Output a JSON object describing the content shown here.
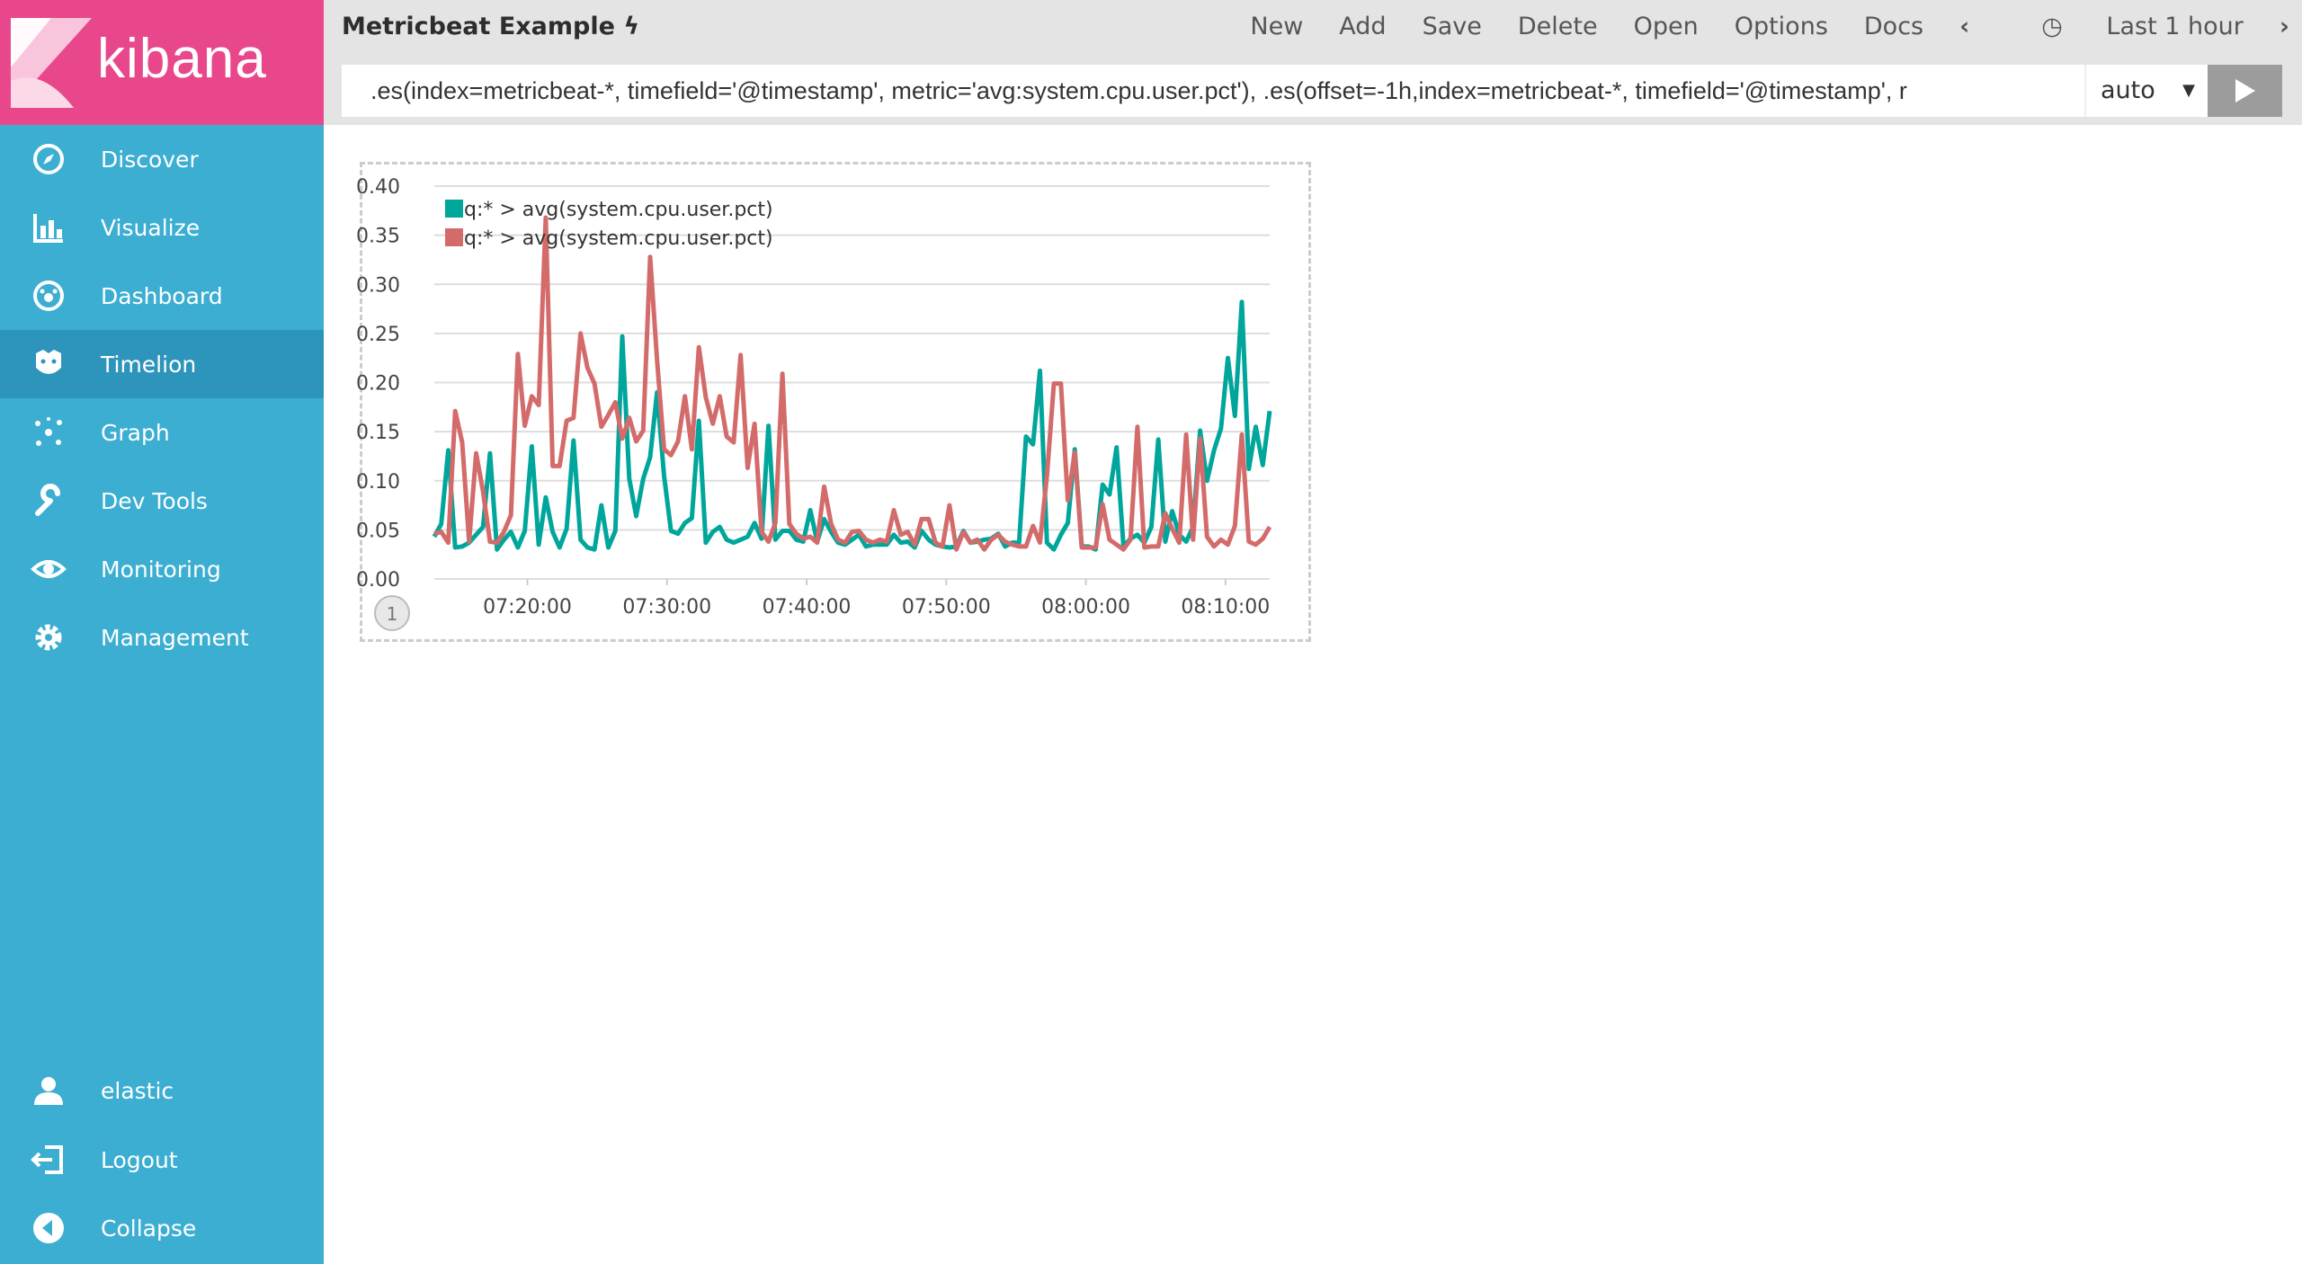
{
  "app": {
    "logo_text": "kibana",
    "brand_color": "#e8488b",
    "sidebar_color": "#3caed2"
  },
  "sidebar": {
    "items": [
      {
        "label": "Discover",
        "icon": "compass-icon"
      },
      {
        "label": "Visualize",
        "icon": "bar-chart-icon"
      },
      {
        "label": "Dashboard",
        "icon": "dashboard-icon"
      },
      {
        "label": "Timelion",
        "icon": "timelion-icon",
        "active": true
      },
      {
        "label": "Graph",
        "icon": "graph-icon"
      },
      {
        "label": "Dev Tools",
        "icon": "wrench-icon"
      },
      {
        "label": "Monitoring",
        "icon": "eye-icon"
      },
      {
        "label": "Management",
        "icon": "gear-icon"
      }
    ],
    "bottom": [
      {
        "label": "elastic",
        "icon": "user-icon"
      },
      {
        "label": "Logout",
        "icon": "logout-icon"
      },
      {
        "label": "Collapse",
        "icon": "collapse-icon"
      }
    ]
  },
  "header": {
    "title": "Metricbeat Example",
    "menu": [
      "New",
      "Add",
      "Save",
      "Delete",
      "Open",
      "Options",
      "Docs"
    ],
    "time_range": "Last 1 hour",
    "query": ".es(index=metricbeat-*, timefield='@timestamp', metric='avg:system.cpu.user.pct'), .es(offset=-1h,index=metricbeat-*, timefield='@timestamp', r",
    "interval": "auto"
  },
  "chart_data": {
    "type": "line",
    "x_range": [
      "07:13:20",
      "08:13:10"
    ],
    "x_ticks": [
      "07:20:00",
      "07:30:00",
      "07:40:00",
      "07:50:00",
      "08:00:00",
      "08:10:00"
    ],
    "y_ticks": [
      "0.00",
      "0.05",
      "0.10",
      "0.15",
      "0.20",
      "0.25",
      "0.30",
      "0.35",
      "0.40"
    ],
    "ylim": [
      0,
      0.4
    ],
    "grid": true,
    "legend": "top-left",
    "page_badge": "1",
    "series": [
      {
        "name": "q:* > avg(system.cpu.user.pct)",
        "color": "#00a69b",
        "values": [
          0.043,
          0.056,
          0.131,
          0.032,
          0.033,
          0.037,
          0.045,
          0.053,
          0.128,
          0.03,
          0.04,
          0.048,
          0.032,
          0.049,
          0.135,
          0.035,
          0.083,
          0.048,
          0.032,
          0.051,
          0.141,
          0.04,
          0.032,
          0.03,
          0.075,
          0.032,
          0.049,
          0.247,
          0.102,
          0.064,
          0.102,
          0.124,
          0.19,
          0.105,
          0.049,
          0.046,
          0.057,
          0.062,
          0.161,
          0.037,
          0.048,
          0.053,
          0.04,
          0.037,
          0.04,
          0.043,
          0.057,
          0.041,
          0.156,
          0.04,
          0.049,
          0.049,
          0.04,
          0.038,
          0.07,
          0.038,
          0.061,
          0.048,
          0.037,
          0.035,
          0.04,
          0.045,
          0.033,
          0.035,
          0.035,
          0.035,
          0.045,
          0.037,
          0.038,
          0.032,
          0.049,
          0.04,
          0.035,
          0.033,
          0.032,
          0.033,
          0.049,
          0.037,
          0.038,
          0.04,
          0.041,
          0.046,
          0.033,
          0.037,
          0.037,
          0.145,
          0.137,
          0.212,
          0.037,
          0.03,
          0.045,
          0.057,
          0.132,
          0.033,
          0.033,
          0.03,
          0.096,
          0.086,
          0.134,
          0.033,
          0.041,
          0.045,
          0.037,
          0.053,
          0.142,
          0.038,
          0.069,
          0.045,
          0.038,
          0.053,
          0.151,
          0.1,
          0.131,
          0.153,
          0.225,
          0.166,
          0.282,
          0.112,
          0.155,
          0.116,
          0.171
        ]
      },
      {
        "name": "q:* > avg(system.cpu.user.pct)",
        "color": "#d36b6b",
        "values": [
          0.046,
          0.048,
          0.037,
          0.171,
          0.139,
          0.038,
          0.128,
          0.089,
          0.038,
          0.037,
          0.048,
          0.065,
          0.229,
          0.156,
          0.186,
          0.177,
          0.368,
          0.115,
          0.115,
          0.161,
          0.164,
          0.25,
          0.215,
          0.199,
          0.155,
          0.167,
          0.18,
          0.143,
          0.164,
          0.14,
          0.151,
          0.328,
          0.223,
          0.132,
          0.126,
          0.14,
          0.186,
          0.132,
          0.236,
          0.185,
          0.158,
          0.186,
          0.145,
          0.139,
          0.228,
          0.113,
          0.158,
          0.048,
          0.038,
          0.057,
          0.209,
          0.056,
          0.046,
          0.041,
          0.043,
          0.037,
          0.094,
          0.056,
          0.04,
          0.037,
          0.048,
          0.049,
          0.04,
          0.037,
          0.04,
          0.038,
          0.07,
          0.045,
          0.048,
          0.035,
          0.061,
          0.061,
          0.037,
          0.033,
          0.075,
          0.03,
          0.048,
          0.037,
          0.04,
          0.03,
          0.04,
          0.045,
          0.038,
          0.035,
          0.033,
          0.033,
          0.054,
          0.037,
          0.105,
          0.199,
          0.199,
          0.08,
          0.129,
          0.032,
          0.032,
          0.032,
          0.076,
          0.04,
          0.035,
          0.03,
          0.04,
          0.155,
          0.032,
          0.033,
          0.033,
          0.067,
          0.051,
          0.037,
          0.147,
          0.04,
          0.143,
          0.043,
          0.033,
          0.04,
          0.035,
          0.054,
          0.147,
          0.038,
          0.035,
          0.041,
          0.053
        ]
      }
    ]
  }
}
